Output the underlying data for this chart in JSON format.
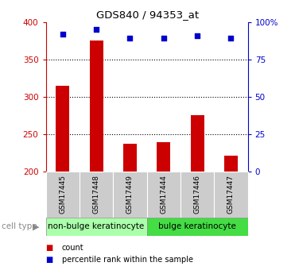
{
  "title": "GDS840 / 94353_at",
  "samples": [
    "GSM17445",
    "GSM17448",
    "GSM17449",
    "GSM17444",
    "GSM17446",
    "GSM17447"
  ],
  "counts": [
    315,
    375,
    237,
    239,
    275,
    221
  ],
  "percentiles": [
    92,
    95,
    89,
    89,
    91,
    89
  ],
  "ylim_left": [
    200,
    400
  ],
  "ylim_right": [
    0,
    100
  ],
  "yticks_left": [
    200,
    250,
    300,
    350,
    400
  ],
  "yticks_right": [
    0,
    25,
    50,
    75,
    100
  ],
  "ytick_labels_right": [
    "0",
    "25",
    "50",
    "75",
    "100%"
  ],
  "bar_color": "#cc0000",
  "dot_color": "#0000cc",
  "cell_types": [
    {
      "label": "non-bulge keratinocyte",
      "span": [
        0,
        2
      ],
      "color": "#aaffaa"
    },
    {
      "label": "bulge keratinocyte",
      "span": [
        3,
        5
      ],
      "color": "#44dd44"
    }
  ],
  "legend_items": [
    {
      "label": "count",
      "color": "#cc0000"
    },
    {
      "label": "percentile rank within the sample",
      "color": "#0000cc"
    }
  ],
  "background_color": "#ffffff",
  "cell_type_label": "cell type",
  "base_value": 200,
  "grid_dotted_at": [
    250,
    300,
    350
  ]
}
